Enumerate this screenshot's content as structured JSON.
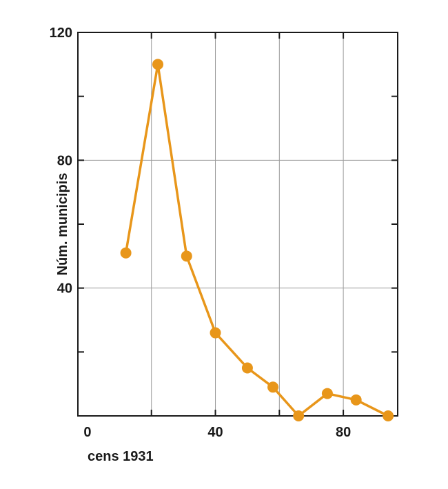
{
  "chart_data": {
    "type": "line",
    "xlabel": "cens 1931",
    "ylabel": "Núm. municipis",
    "xlim": [
      -3,
      97
    ],
    "ylim": [
      0,
      120
    ],
    "x_ticks": [
      0,
      40,
      80
    ],
    "y_ticks": [
      40,
      80,
      120
    ],
    "grid": true,
    "series": [
      {
        "color": "#e8961a",
        "x": [
          12,
          22,
          31,
          40,
          50,
          58,
          66,
          75,
          84,
          94
        ],
        "y": [
          51,
          110,
          50,
          26,
          15,
          9,
          0,
          7,
          5,
          0
        ]
      }
    ]
  }
}
